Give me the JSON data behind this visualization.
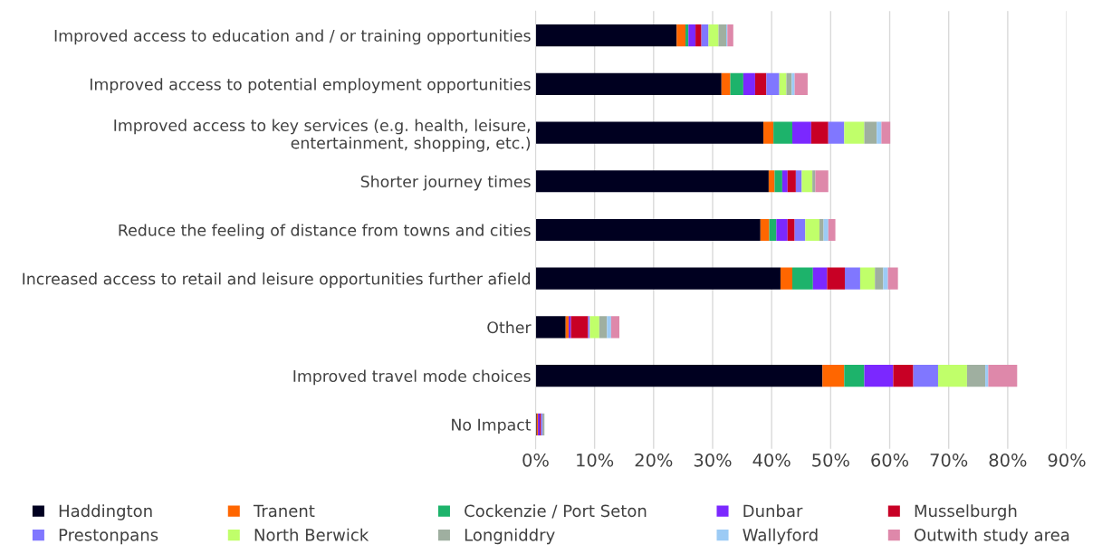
{
  "chart_data": {
    "type": "bar",
    "orientation": "horizontal",
    "stacked": true,
    "categories": [
      "Improved access to education and / or training opportunities",
      "Improved access to potential employment opportunities",
      "Improved access to key services (e.g. health, leisure, entertainment, shopping, etc.)",
      "Shorter journey times",
      "Reduce the feeling of distance from towns and cities",
      "Increased access to retail and leisure opportunities further afield",
      "Other",
      "Improved travel mode choices",
      "No Impact"
    ],
    "series": [
      {
        "name": "Haddington",
        "color": "#000020",
        "values": [
          23.9,
          31.5,
          38.6,
          39.5,
          38.1,
          41.5,
          5.1,
          48.6,
          0.2
        ]
      },
      {
        "name": "Tranent",
        "color": "#ff6600",
        "values": [
          1.5,
          1.5,
          1.7,
          1.0,
          1.5,
          2.0,
          0.5,
          3.7,
          0.2
        ]
      },
      {
        "name": "Cockenzie / Port Seton",
        "color": "#1db36b",
        "values": [
          0.5,
          2.2,
          3.2,
          1.3,
          1.2,
          3.5,
          0,
          3.4,
          0
        ]
      },
      {
        "name": "Dunbar",
        "color": "#7b28ff",
        "values": [
          1.2,
          2.0,
          3.2,
          0.9,
          1.9,
          2.4,
          0.4,
          4.9,
          0.3
        ]
      },
      {
        "name": "Musselburgh",
        "color": "#c80025",
        "values": [
          1.0,
          1.9,
          2.9,
          1.4,
          1.2,
          3.0,
          2.9,
          3.4,
          0.2
        ]
      },
      {
        "name": "Prestonpans",
        "color": "#8077ff",
        "values": [
          1.2,
          2.2,
          2.7,
          1.0,
          1.8,
          2.6,
          0.3,
          4.2,
          0.3
        ]
      },
      {
        "name": "North Berwick",
        "color": "#c0ff6a",
        "values": [
          1.7,
          1.2,
          3.4,
          1.8,
          2.4,
          2.5,
          1.6,
          4.9,
          0
        ]
      },
      {
        "name": "Longniddry",
        "color": "#9fafa0",
        "values": [
          1.3,
          0.9,
          2.1,
          0.5,
          0.7,
          1.4,
          1.3,
          3.1,
          0.3
        ]
      },
      {
        "name": "Wallyford",
        "color": "#9ccbf5",
        "values": [
          0.2,
          0.5,
          0.8,
          0,
          0.8,
          0.8,
          0.7,
          0.5,
          0
        ]
      },
      {
        "name": "Outwith study area",
        "color": "#de88aa",
        "values": [
          1.0,
          2.2,
          1.5,
          2.2,
          1.2,
          1.7,
          1.4,
          4.9,
          0
        ]
      }
    ],
    "xlim": [
      0,
      90
    ],
    "xticks": [
      {
        "value": 0,
        "label": "0%"
      },
      {
        "value": 10,
        "label": "10%"
      },
      {
        "value": 20,
        "label": "20%"
      },
      {
        "value": 30,
        "label": "30%"
      },
      {
        "value": 40,
        "label": "40%"
      },
      {
        "value": 50,
        "label": "50%"
      },
      {
        "value": 60,
        "label": "60%"
      },
      {
        "value": 70,
        "label": "70%"
      },
      {
        "value": 80,
        "label": "80%"
      },
      {
        "value": 90,
        "label": "90%"
      }
    ],
    "grid": "x",
    "legend": "bottom"
  }
}
